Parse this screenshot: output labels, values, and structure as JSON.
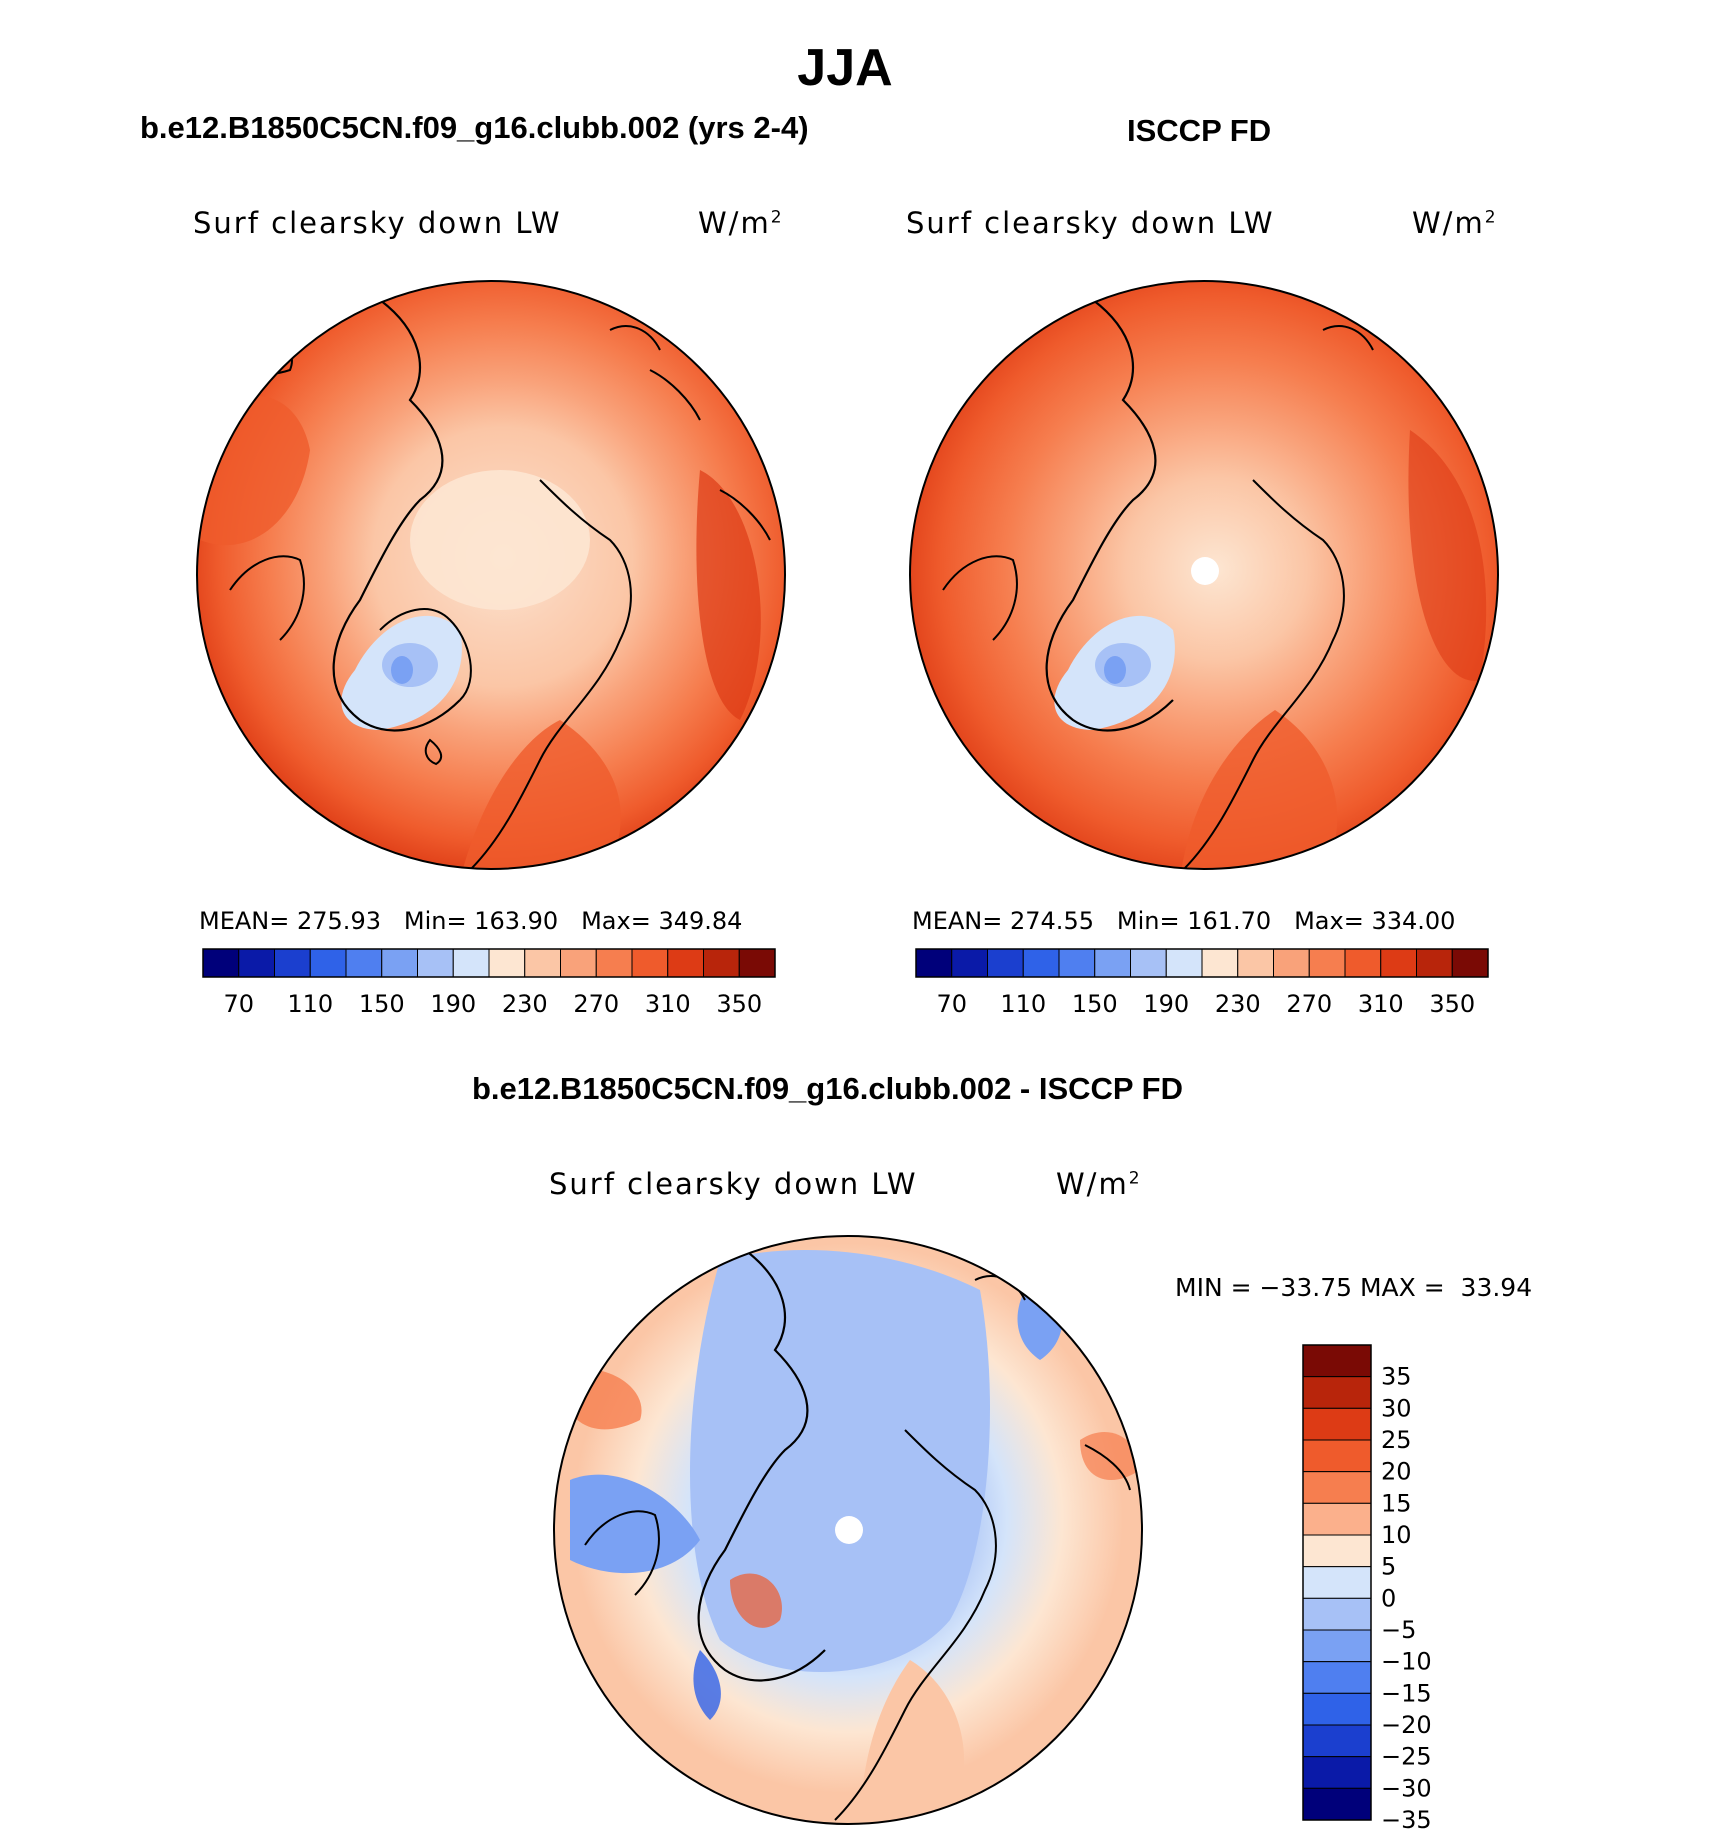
{
  "page": {
    "title": "JJA"
  },
  "panels": {
    "model": {
      "title": "b.e12.B1850C5CN.f09_g16.clubb.002 (yrs 2-4)",
      "variable": "Surf clearsky down LW",
      "units_base": "W/m",
      "units_exp": "2",
      "mean_label": "MEAN=",
      "mean_value": "275.93",
      "min_label": "Min=",
      "min_value": "163.90",
      "max_label": "Max=",
      "max_value": "349.84"
    },
    "obs": {
      "title": "ISCCP FD",
      "variable": "Surf clearsky down LW",
      "units_base": "W/m",
      "units_exp": "2",
      "mean_label": "MEAN=",
      "mean_value": "274.55",
      "min_label": "Min=",
      "min_value": "161.70",
      "max_label": "Max=",
      "max_value": "334.00"
    },
    "diff": {
      "title": "b.e12.B1850C5CN.f09_g16.clubb.002 - ISCCP FD",
      "variable": "Surf clearsky down LW",
      "units_base": "W/m",
      "units_exp": "2",
      "minmax_text": "MIN = −33.75 MAX =  33.94"
    }
  },
  "chart_data": [
    {
      "type": "heatmap",
      "projection": "north-polar-stereographic",
      "title": "b.e12.B1850C5CN.f09_g16.clubb.002 (yrs 2-4)",
      "field": "Surf clearsky down LW",
      "units": "W/m2",
      "mean": 275.93,
      "min": 163.9,
      "max": 349.84,
      "contour_levels": [
        70,
        90,
        110,
        130,
        150,
        170,
        190,
        210,
        230,
        250,
        270,
        290,
        310,
        330,
        350
      ],
      "colorbar_ticks": [
        "70",
        "110",
        "150",
        "190",
        "230",
        "270",
        "310",
        "350"
      ],
      "colors": [
        "#00007a",
        "#0a1aa8",
        "#1b3fcf",
        "#2f62e8",
        "#4f7ff0",
        "#7aa1f3",
        "#a7c1f6",
        "#d4e4fa",
        "#fde6d2",
        "#fbc6a6",
        "#f9a27a",
        "#f67e4f",
        "#ef5b2c",
        "#dd3b15",
        "#b8250b",
        "#7a0a05"
      ]
    },
    {
      "type": "heatmap",
      "projection": "north-polar-stereographic",
      "title": "ISCCP FD",
      "field": "Surf clearsky down LW",
      "units": "W/m2",
      "mean": 274.55,
      "min": 161.7,
      "max": 334.0,
      "contour_levels": [
        70,
        90,
        110,
        130,
        150,
        170,
        190,
        210,
        230,
        250,
        270,
        290,
        310,
        330,
        350
      ],
      "colorbar_ticks": [
        "70",
        "110",
        "150",
        "190",
        "230",
        "270",
        "310",
        "350"
      ],
      "colors": [
        "#00007a",
        "#0a1aa8",
        "#1b3fcf",
        "#2f62e8",
        "#4f7ff0",
        "#7aa1f3",
        "#a7c1f6",
        "#d4e4fa",
        "#fde6d2",
        "#fbc6a6",
        "#f9a27a",
        "#f67e4f",
        "#ef5b2c",
        "#dd3b15",
        "#b8250b",
        "#7a0a05"
      ]
    },
    {
      "type": "heatmap",
      "projection": "north-polar-stereographic",
      "title": "b.e12.B1850C5CN.f09_g16.clubb.002 - ISCCP FD",
      "field": "Surf clearsky down LW",
      "units": "W/m2",
      "min": -33.75,
      "max": 33.94,
      "contour_levels": [
        -35,
        -30,
        -25,
        -20,
        -15,
        -10,
        -5,
        0,
        5,
        10,
        15,
        20,
        25,
        30,
        35
      ],
      "colorbar_ticks": [
        "35",
        "30",
        "25",
        "20",
        "15",
        "10",
        "5",
        "0",
        "−5",
        "−10",
        "−15",
        "−20",
        "−25",
        "−30",
        "−35"
      ],
      "colors_top_to_bottom": [
        "#7a0a05",
        "#b8250b",
        "#dd3b15",
        "#ef5b2c",
        "#f67e4f",
        "#fbb08c",
        "#fde6d2",
        "#d4e4fa",
        "#a7c1f6",
        "#7aa1f3",
        "#4f7ff0",
        "#2f62e8",
        "#1b3fcf",
        "#0a1aa8",
        "#00007a"
      ]
    }
  ]
}
